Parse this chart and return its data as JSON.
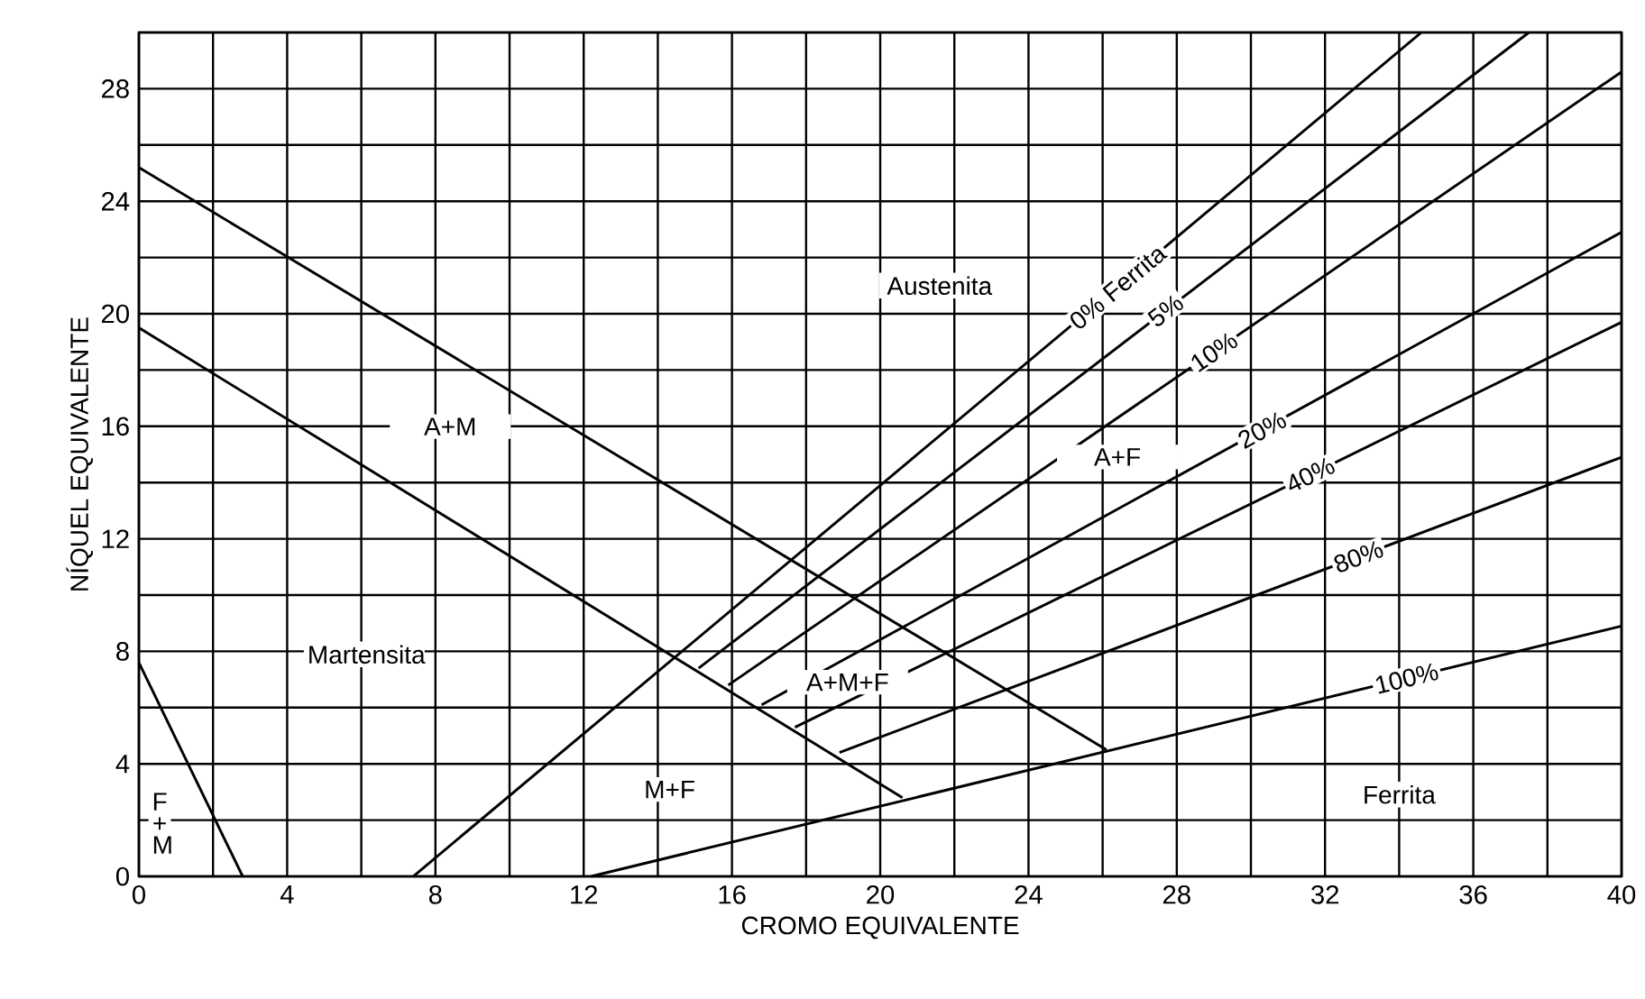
{
  "chart_data": {
    "type": "line",
    "xlabel": "CROMO EQUIVALENTE",
    "ylabel": "NÍQUEL EQUIVALENTE",
    "xlim": [
      0,
      40
    ],
    "ylim": [
      0,
      30
    ],
    "xticks": [
      0,
      {
        "value": 2,
        "label": null
      },
      4,
      {
        "value": 6,
        "label": null
      },
      8,
      {
        "value": 10,
        "label": null
      },
      12,
      {
        "value": 14,
        "label": null
      },
      16,
      {
        "value": 18,
        "label": null
      },
      20,
      {
        "value": 22,
        "label": null
      },
      24,
      {
        "value": 26,
        "label": null
      },
      28,
      {
        "value": 30,
        "label": null
      },
      32,
      {
        "value": 34,
        "label": null
      },
      36,
      {
        "value": 38,
        "label": null
      },
      40
    ],
    "yticks": [
      0,
      {
        "value": 2,
        "label": null
      },
      4,
      {
        "value": 6,
        "label": null
      },
      8,
      {
        "value": 10,
        "label": null
      },
      12,
      {
        "value": 14,
        "label": null
      },
      16,
      {
        "value": 18,
        "label": null
      },
      20,
      {
        "value": 22,
        "label": null
      },
      24,
      {
        "value": 26,
        "label": null
      },
      28,
      {
        "value": 30,
        "label": null
      }
    ],
    "grid": true,
    "marker": "none",
    "line_style": "solid",
    "series": [
      {
        "color": "#000000",
        "x": [
          0,
          26.1
        ],
        "values": [
          25.2,
          4.5
        ]
      },
      {
        "color": "#000000",
        "x": [
          0,
          20.6
        ],
        "values": [
          19.5,
          2.8
        ]
      },
      {
        "color": "#000000",
        "x": [
          0,
          2.8
        ],
        "values": [
          7.6,
          0
        ]
      },
      {
        "name": "0% Ferrita",
        "color": "#000000",
        "x": [
          7.4,
          34.6
        ],
        "values": [
          0,
          30
        ]
      },
      {
        "name": "5%",
        "color": "#000000",
        "x": [
          15.1,
          37.5
        ],
        "values": [
          7.4,
          30
        ]
      },
      {
        "name": "10%",
        "color": "#000000",
        "x": [
          15.9,
          40
        ],
        "values": [
          6.8,
          28.6
        ]
      },
      {
        "name": "20%",
        "color": "#000000",
        "x": [
          16.8,
          40
        ],
        "values": [
          6.1,
          22.9
        ]
      },
      {
        "name": "40%",
        "color": "#000000",
        "x": [
          17.7,
          40
        ],
        "values": [
          5.3,
          19.7
        ]
      },
      {
        "name": "80%",
        "color": "#000000",
        "x": [
          18.9,
          40
        ],
        "values": [
          4.4,
          14.9
        ]
      },
      {
        "name": "100%",
        "color": "#000000",
        "x": [
          12.2,
          40
        ],
        "values": [
          0,
          8.9
        ]
      }
    ],
    "annotations": [
      "Austenita",
      "A+M",
      "Martensita",
      "A+M+F",
      "M+F",
      "A+F",
      "Ferrita",
      "F + M"
    ]
  }
}
